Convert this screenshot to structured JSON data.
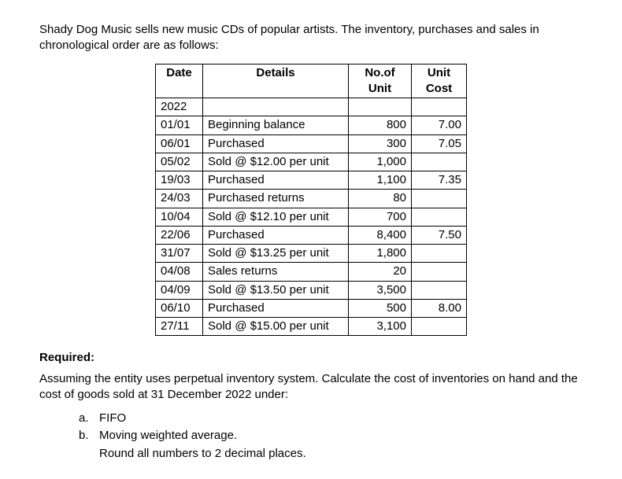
{
  "intro": "Shady Dog Music sells new music CDs of popular artists. The inventory, purchases and sales in chronological order are as follows:",
  "table": {
    "headers": {
      "date": "Date",
      "details": "Details",
      "units_l1": "No.of",
      "units_l2": "Unit",
      "cost_l1": "Unit",
      "cost_l2": "Cost"
    },
    "year": "2022",
    "rows": [
      {
        "date": "01/01",
        "details": "Beginning balance",
        "units": "800",
        "cost": "7.00"
      },
      {
        "date": "06/01",
        "details": "Purchased",
        "units": "300",
        "cost": "7.05"
      },
      {
        "date": "05/02",
        "details": "Sold @ $12.00 per unit",
        "units": "1,000",
        "cost": ""
      },
      {
        "date": "19/03",
        "details": "Purchased",
        "units": "1,100",
        "cost": "7.35"
      },
      {
        "date": "24/03",
        "details": "Purchased returns",
        "units": "80",
        "cost": ""
      },
      {
        "date": "10/04",
        "details": "Sold @ $12.10 per unit",
        "units": "700",
        "cost": ""
      },
      {
        "date": "22/06",
        "details": "Purchased",
        "units": "8,400",
        "cost": "7.50"
      },
      {
        "date": "31/07",
        "details": "Sold @ $13.25 per unit",
        "units": "1,800",
        "cost": ""
      },
      {
        "date": "04/08",
        "details": "Sales returns",
        "units": "20",
        "cost": ""
      },
      {
        "date": "04/09",
        "details": "Sold @ $13.50 per unit",
        "units": "3,500",
        "cost": ""
      },
      {
        "date": "06/10",
        "details": "Purchased",
        "units": "500",
        "cost": "8.00"
      },
      {
        "date": "27/11",
        "details": "Sold @ $15.00 per unit",
        "units": "3,100",
        "cost": ""
      }
    ]
  },
  "required": {
    "heading": "Required:",
    "text": "Assuming the entity uses perpetual inventory system. Calculate the cost of inventories on hand and the cost of goods sold at 31 December 2022 under:",
    "items": [
      {
        "marker": "a.",
        "text": "FIFO"
      },
      {
        "marker": "b.",
        "text": "Moving weighted average."
      }
    ],
    "note": "Round all numbers to 2 decimal places."
  }
}
